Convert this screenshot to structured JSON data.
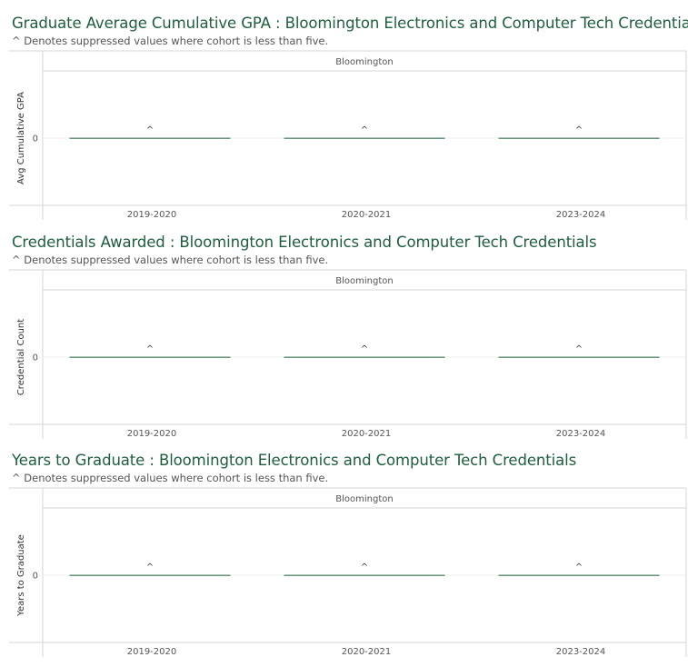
{
  "chart_data": [
    {
      "type": "bar",
      "title": "Graduate Average Cumulative GPA : Bloomington Electronics and Computer Tech Credentials",
      "note": "^ Denotes suppressed values where cohort is less than five.",
      "panel": "Bloomington",
      "ylabel": "Avg Cumulative GPA",
      "xlabel": "",
      "yticks": [
        "0"
      ],
      "categories": [
        "2019-2020",
        "2020-2021",
        "2023-2024"
      ],
      "values": [
        0,
        0,
        0
      ],
      "data_labels": [
        "^",
        "^",
        "^"
      ],
      "grid": true,
      "colors": {
        "mark": "#5a8a6e",
        "title": "#1e5e3e"
      }
    },
    {
      "type": "bar",
      "title": "Credentials Awarded : Bloomington Electronics and Computer Tech Credentials",
      "note": "^ Denotes suppressed values where cohort is less than five.",
      "panel": "Bloomington",
      "ylabel": "Credential Count",
      "xlabel": "",
      "yticks": [
        "0"
      ],
      "categories": [
        "2019-2020",
        "2020-2021",
        "2023-2024"
      ],
      "values": [
        0,
        0,
        0
      ],
      "data_labels": [
        "^",
        "^",
        "^"
      ],
      "grid": true,
      "colors": {
        "mark": "#5a8a6e",
        "title": "#1e5e3e"
      }
    },
    {
      "type": "bar",
      "title": "Years to Graduate : Bloomington Electronics and Computer Tech Credentials",
      "note": "^ Denotes suppressed values where cohort is less than five.",
      "panel": "Bloomington",
      "ylabel": "Years to Graduate",
      "xlabel": "",
      "yticks": [
        "0"
      ],
      "categories": [
        "2019-2020",
        "2020-2021",
        "2023-2024"
      ],
      "values": [
        0,
        0,
        0
      ],
      "data_labels": [
        "^",
        "^",
        "^"
      ],
      "grid": true,
      "colors": {
        "mark": "#5a8a6e",
        "title": "#1e5e3e"
      }
    }
  ]
}
